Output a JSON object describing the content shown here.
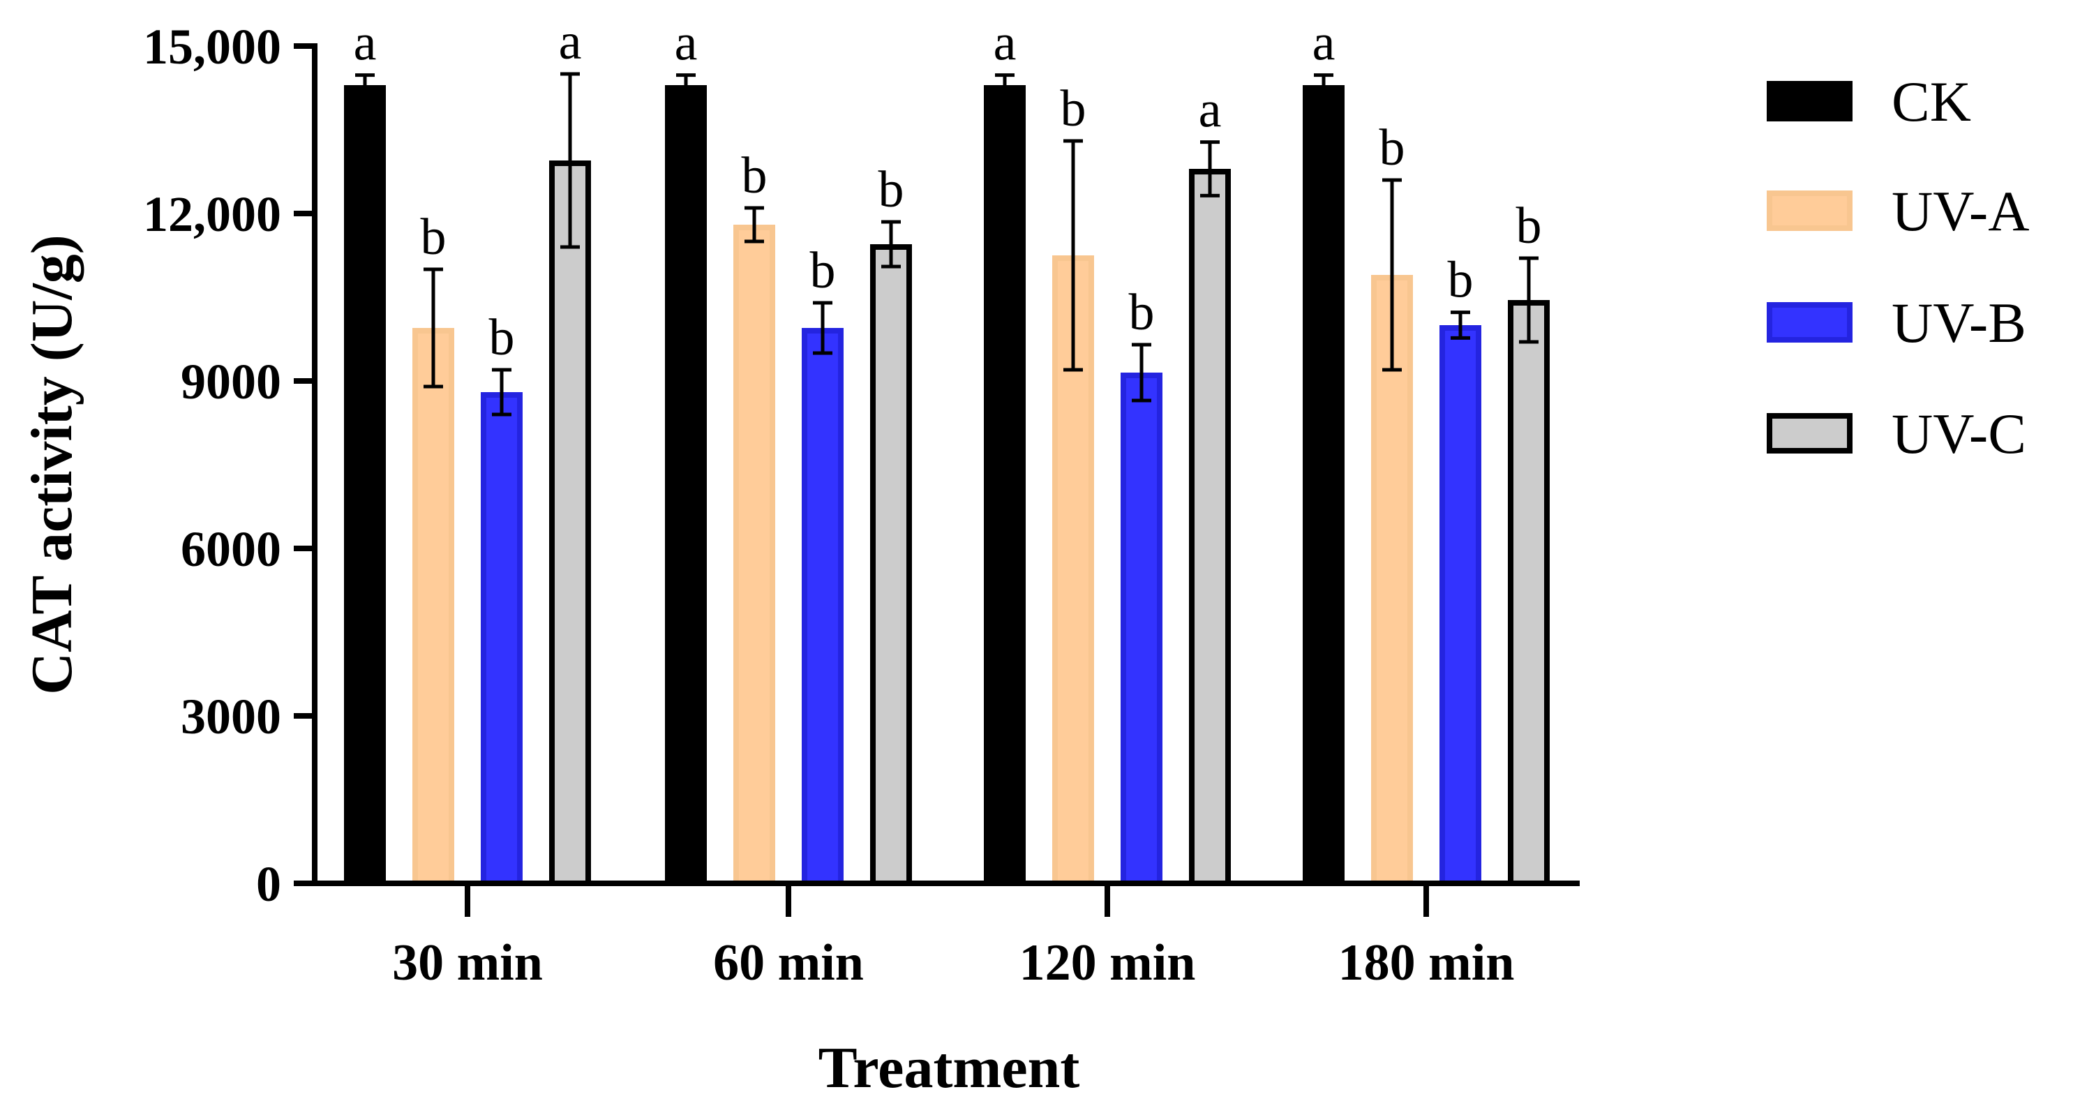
{
  "chart_data": {
    "type": "bar",
    "title": "",
    "xlabel": "Treatment",
    "ylabel": "CAT activity (U/g)",
    "ylim": [
      0,
      15000
    ],
    "yticks": [
      0,
      3000,
      6000,
      9000,
      12000,
      15000
    ],
    "ytick_labels": [
      "0",
      "3000",
      "6000",
      "9000",
      "12,000",
      "15,000"
    ],
    "categories": [
      "30 min",
      "60 min",
      "120 min",
      "180 min"
    ],
    "legend_position": "right",
    "series": [
      {
        "name": "CK",
        "fill": "#000000",
        "stroke": "#000000",
        "values": [
          14300,
          14300,
          14300,
          14300
        ],
        "errors": [
          180,
          180,
          180,
          180
        ],
        "labels": [
          "a",
          "a",
          "a",
          "a"
        ]
      },
      {
        "name": "UV-A",
        "fill": "#FFCC99",
        "stroke": "#F8C690",
        "values": [
          9950,
          11800,
          11250,
          10900
        ],
        "errors": [
          1050,
          300,
          2050,
          1700
        ],
        "labels": [
          "b",
          "b",
          "b",
          "b"
        ]
      },
      {
        "name": "UV-B",
        "fill": "#3333FF",
        "stroke": "#2424E0",
        "values": [
          8800,
          9950,
          9150,
          10000
        ],
        "errors": [
          400,
          450,
          500,
          230
        ],
        "labels": [
          "b",
          "b",
          "b",
          "b"
        ]
      },
      {
        "name": "UV-C",
        "fill": "#CCCCCC",
        "stroke": "#000000",
        "values": [
          12950,
          11450,
          12800,
          10450
        ],
        "errors": [
          1550,
          400,
          480,
          750
        ],
        "labels": [
          "a",
          "b",
          "a",
          "b"
        ]
      }
    ]
  }
}
